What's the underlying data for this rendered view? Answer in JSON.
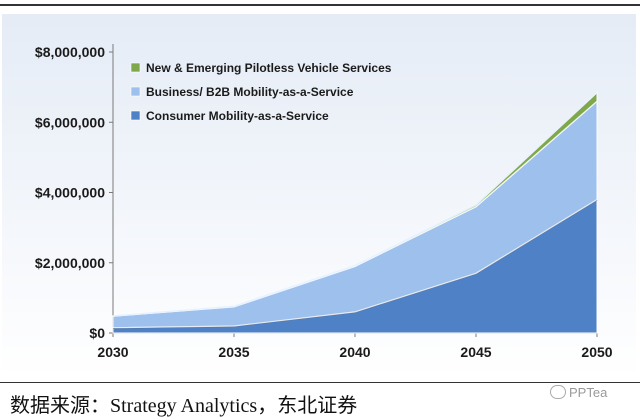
{
  "chart_data": {
    "type": "area",
    "stacked": true,
    "x": [
      2030,
      2035,
      2040,
      2045,
      2050
    ],
    "series": [
      {
        "name": "Consumer Mobility-as-a-Service",
        "values": [
          150000,
          200000,
          600000,
          1700000,
          3800000
        ],
        "color": "#4f81c7"
      },
      {
        "name": "Business/ B2B Mobility-as-a-Service",
        "values": [
          330000,
          550000,
          1300000,
          1900000,
          2800000
        ],
        "color": "#9dc0ec"
      },
      {
        "name": "New & Emerging Pilotless Vehicle Services",
        "values": [
          5000,
          10000,
          20000,
          50000,
          250000
        ],
        "color": "#7fa84a"
      }
    ],
    "ylim": [
      0,
      8000000
    ],
    "yticks": [
      0,
      2000000,
      4000000,
      6000000,
      8000000
    ],
    "ytick_labels": [
      "$0",
      "$2,000,000",
      "$4,000,000",
      "$6,000,000",
      "$8,000,000"
    ],
    "xtick_labels": [
      "2030",
      "2035",
      "2040",
      "2045",
      "2050"
    ],
    "legend": [
      "New & Emerging Pilotless Vehicle Services",
      "Business/ B2B Mobility-as-a-Service",
      "Consumer Mobility-as-a-Service"
    ],
    "legend_position": "top-left",
    "grid": false,
    "title": "",
    "xlabel": "",
    "ylabel": ""
  },
  "source_text": "数据来源：Strategy Analytics，东北证券",
  "watermark_text": "PPTea"
}
